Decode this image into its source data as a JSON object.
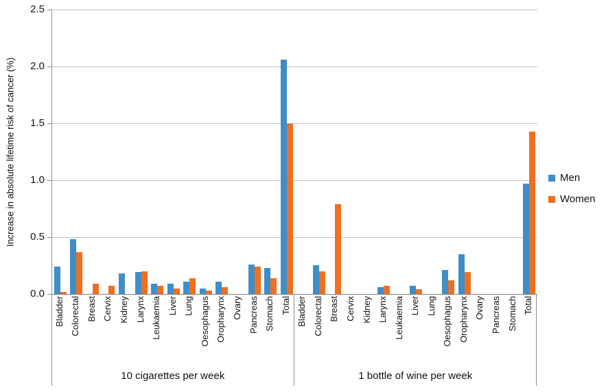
{
  "legend": {
    "items": [
      {
        "label": "Men",
        "color": "#3e8ec8"
      },
      {
        "label": "Women",
        "color": "#ee7020"
      }
    ]
  },
  "chart_data": {
    "type": "bar",
    "title": "",
    "ylabel": "Increase in absolute lifetime risk of cancer (%)",
    "xlabel": "",
    "ylim": [
      0,
      2.5
    ],
    "ytick_labels": [
      "0.0",
      "0.5",
      "1.0",
      "1.5",
      "2.0",
      "2.5"
    ],
    "grid": true,
    "legend_position": "right",
    "categories": [
      "Bladder",
      "Colorectal",
      "Breast",
      "Cervix",
      "Kidney",
      "Larynx",
      "Leukaemia",
      "Liver",
      "Lung",
      "Oesophagus",
      "Oropharynx",
      "Ovary",
      "Pancreas",
      "Stomach",
      "Total"
    ],
    "groups": [
      {
        "label": "10 cigarettes per week",
        "series": [
          {
            "name": "Men",
            "values": [
              0.24,
              0.48,
              0,
              0,
              0.18,
              0.19,
              0.09,
              0.09,
              0.11,
              0.05,
              0.11,
              0,
              0.26,
              0.23,
              2.06
            ]
          },
          {
            "name": "Women",
            "values": [
              0.02,
              0.37,
              0.09,
              0.07,
              0,
              0.2,
              0.07,
              0.05,
              0.14,
              0.03,
              0.06,
              0,
              0.24,
              0.14,
              1.5
            ]
          }
        ]
      },
      {
        "label": "1 bottle of wine per week",
        "series": [
          {
            "name": "Men",
            "values": [
              0,
              0.25,
              0,
              0,
              0,
              0.06,
              0,
              0.07,
              0,
              0.21,
              0.35,
              0,
              0,
              0,
              0.97
            ]
          },
          {
            "name": "Women",
            "values": [
              0,
              0.2,
              0.79,
              0,
              0,
              0.07,
              0,
              0.04,
              0,
              0.12,
              0.19,
              0,
              0,
              0,
              1.43
            ]
          }
        ]
      }
    ]
  }
}
